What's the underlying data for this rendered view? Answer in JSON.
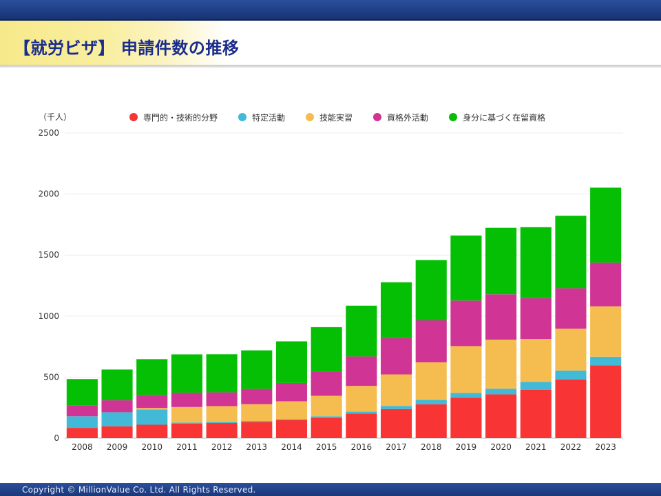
{
  "header": {
    "title": "【就労ビザ】 申請件数の推移"
  },
  "footer": {
    "copyright": "Copyright © MillionValue Co. Ltd. All Rights Reserved."
  },
  "chart_data": {
    "type": "bar",
    "stacked": true,
    "unit_label": "（千人）",
    "ylim": [
      0,
      2500
    ],
    "yticks": [
      0,
      500,
      1000,
      1500,
      2000,
      2500
    ],
    "grid": true,
    "legend_position": "top",
    "categories": [
      "2008",
      "2009",
      "2010",
      "2011",
      "2012",
      "2013",
      "2014",
      "2015",
      "2016",
      "2017",
      "2018",
      "2019",
      "2020",
      "2021",
      "2022",
      "2023"
    ],
    "series": [
      {
        "name": "専門的・技術的分野",
        "color": "#f93434",
        "values": [
          84,
          97,
          110,
          120,
          124,
          132,
          147,
          167,
          201,
          238,
          277,
          330,
          359,
          395,
          480,
          596
        ]
      },
      {
        "name": "特定活動",
        "color": "#42b9d6",
        "values": [
          95,
          115,
          125,
          8,
          8,
          9,
          10,
          12,
          16,
          26,
          36,
          41,
          46,
          66,
          74,
          71
        ]
      },
      {
        "name": "技能実習",
        "color": "#f5bd50",
        "values": [
          0,
          0,
          12,
          127,
          130,
          137,
          145,
          168,
          211,
          258,
          308,
          383,
          402,
          351,
          343,
          413
        ]
      },
      {
        "name": "資格外活動",
        "color": "#d03494",
        "values": [
          87,
          98,
          107,
          117,
          113,
          125,
          150,
          195,
          241,
          297,
          344,
          373,
          371,
          335,
          331,
          357
        ]
      },
      {
        "name": "身分に基づく在留資格",
        "color": "#05bf05",
        "values": [
          218,
          252,
          293,
          314,
          312,
          316,
          341,
          367,
          416,
          458,
          494,
          533,
          545,
          581,
          594,
          615
        ]
      }
    ]
  }
}
